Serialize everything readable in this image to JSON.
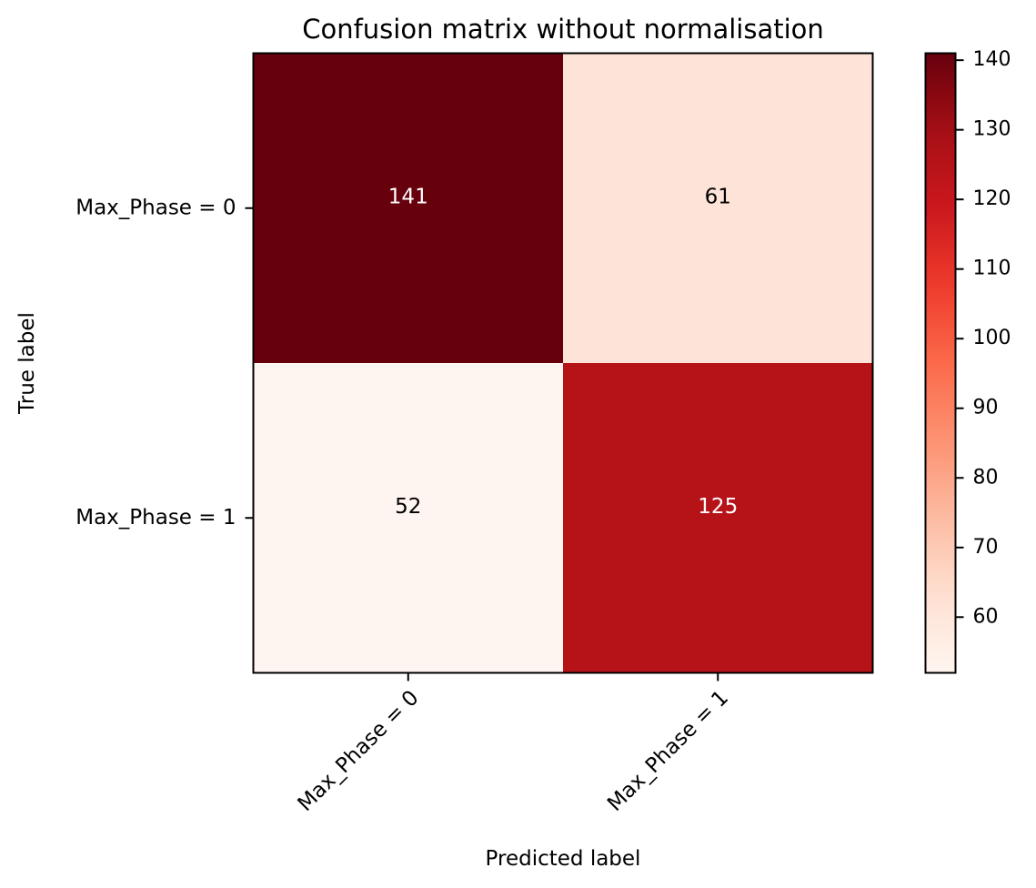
{
  "chart_data": {
    "type": "heatmap",
    "title": "Confusion matrix without normalisation",
    "xlabel": "Predicted label",
    "ylabel": "True label",
    "x_categories": [
      "Max_Phase = 0",
      "Max_Phase = 1"
    ],
    "y_categories": [
      "Max_Phase = 0",
      "Max_Phase = 1"
    ],
    "matrix": [
      [
        141,
        61
      ],
      [
        52,
        125
      ]
    ],
    "colormap": "Reds",
    "colorbar": {
      "min": 52,
      "max": 141,
      "ticks": [
        60,
        70,
        80,
        90,
        100,
        110,
        120,
        130,
        140
      ]
    },
    "x_tick_rotation_deg": 45,
    "grid": false
  }
}
